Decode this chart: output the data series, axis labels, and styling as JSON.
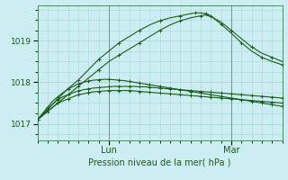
{
  "background_color": "#cceef2",
  "grid_color": "#a8d8dc",
  "line_color": "#1a5c1a",
  "title": "Pression niveau de la mer( hPa )",
  "xlabel_lun": "Lun",
  "xlabel_mar": "Mar",
  "ylim": [
    1016.6,
    1019.85
  ],
  "yticks": [
    1017,
    1018,
    1019
  ],
  "xlim": [
    0,
    48
  ],
  "x_lun": 14,
  "x_mar": 38,
  "series": [
    {
      "x": [
        0,
        1,
        2,
        3,
        4,
        5,
        6,
        7,
        8,
        9,
        10,
        11,
        12,
        13,
        14,
        15,
        16,
        17,
        18,
        19,
        20,
        21,
        22,
        23,
        24,
        25,
        26,
        27,
        28,
        29,
        30,
        31,
        32,
        33,
        34,
        35,
        36,
        37,
        38,
        39,
        40,
        41,
        42,
        43,
        44,
        45,
        46,
        47,
        48
      ],
      "y": [
        1017.1,
        1017.2,
        1017.3,
        1017.4,
        1017.5,
        1017.55,
        1017.6,
        1017.65,
        1017.7,
        1017.72,
        1017.75,
        1017.77,
        1017.78,
        1017.79,
        1017.8,
        1017.8,
        1017.8,
        1017.8,
        1017.8,
        1017.79,
        1017.78,
        1017.77,
        1017.76,
        1017.75,
        1017.74,
        1017.73,
        1017.72,
        1017.71,
        1017.7,
        1017.69,
        1017.68,
        1017.67,
        1017.66,
        1017.65,
        1017.64,
        1017.63,
        1017.62,
        1017.61,
        1017.6,
        1017.59,
        1017.58,
        1017.57,
        1017.56,
        1017.55,
        1017.54,
        1017.53,
        1017.52,
        1017.51,
        1017.5
      ]
    },
    {
      "x": [
        0,
        1,
        2,
        3,
        4,
        5,
        6,
        7,
        8,
        9,
        10,
        11,
        12,
        13,
        14,
        15,
        16,
        17,
        18,
        19,
        20,
        21,
        22,
        23,
        24,
        25,
        26,
        27,
        28,
        29,
        30,
        31,
        32,
        33,
        34,
        35,
        36,
        37,
        38,
        39,
        40,
        41,
        42,
        43,
        44,
        45,
        46,
        47,
        48
      ],
      "y": [
        1017.1,
        1017.2,
        1017.35,
        1017.48,
        1017.58,
        1017.65,
        1017.7,
        1017.75,
        1017.79,
        1017.82,
        1017.84,
        1017.86,
        1017.87,
        1017.88,
        1017.89,
        1017.9,
        1017.9,
        1017.9,
        1017.9,
        1017.9,
        1017.89,
        1017.89,
        1017.88,
        1017.87,
        1017.86,
        1017.85,
        1017.84,
        1017.83,
        1017.82,
        1017.81,
        1017.8,
        1017.79,
        1017.78,
        1017.77,
        1017.76,
        1017.75,
        1017.74,
        1017.73,
        1017.72,
        1017.71,
        1017.7,
        1017.69,
        1017.68,
        1017.67,
        1017.66,
        1017.65,
        1017.64,
        1017.63,
        1017.62
      ]
    },
    {
      "x": [
        0,
        1,
        2,
        3,
        4,
        5,
        6,
        7,
        8,
        9,
        10,
        11,
        12,
        13,
        14,
        15,
        16,
        17,
        18,
        19,
        20,
        21,
        22,
        23,
        24,
        25,
        26,
        27,
        28,
        29,
        30,
        31,
        32,
        33,
        34,
        35,
        36,
        37,
        38,
        39,
        40,
        41,
        42,
        43,
        44,
        45,
        46,
        47,
        48
      ],
      "y": [
        1017.1,
        1017.25,
        1017.4,
        1017.55,
        1017.65,
        1017.75,
        1017.83,
        1017.9,
        1017.96,
        1018.0,
        1018.03,
        1018.05,
        1018.06,
        1018.07,
        1018.07,
        1018.06,
        1018.05,
        1018.04,
        1018.02,
        1018.0,
        1017.98,
        1017.96,
        1017.94,
        1017.92,
        1017.9,
        1017.88,
        1017.86,
        1017.84,
        1017.82,
        1017.8,
        1017.78,
        1017.76,
        1017.74,
        1017.72,
        1017.7,
        1017.68,
        1017.66,
        1017.64,
        1017.62,
        1017.6,
        1017.58,
        1017.56,
        1017.54,
        1017.52,
        1017.5,
        1017.48,
        1017.46,
        1017.44,
        1017.42
      ]
    },
    {
      "x": [
        0,
        2,
        4,
        6,
        8,
        10,
        12,
        14,
        16,
        18,
        20,
        22,
        24,
        26,
        28,
        30,
        32,
        33,
        34,
        36,
        38,
        40,
        42,
        44,
        46,
        48
      ],
      "y": [
        1017.1,
        1017.3,
        1017.5,
        1017.7,
        1017.9,
        1018.1,
        1018.3,
        1018.5,
        1018.65,
        1018.8,
        1018.95,
        1019.1,
        1019.25,
        1019.38,
        1019.48,
        1019.55,
        1019.6,
        1019.62,
        1019.58,
        1019.45,
        1019.25,
        1019.05,
        1018.85,
        1018.7,
        1018.6,
        1018.5
      ]
    },
    {
      "x": [
        0,
        2,
        4,
        6,
        8,
        10,
        12,
        14,
        16,
        18,
        20,
        22,
        24,
        26,
        28,
        30,
        31,
        32,
        33,
        34,
        36,
        38,
        40,
        42,
        44,
        46,
        48
      ],
      "y": [
        1017.1,
        1017.35,
        1017.6,
        1017.85,
        1018.05,
        1018.3,
        1018.55,
        1018.75,
        1018.95,
        1019.1,
        1019.25,
        1019.38,
        1019.48,
        1019.55,
        1019.6,
        1019.65,
        1019.67,
        1019.67,
        1019.65,
        1019.6,
        1019.4,
        1019.18,
        1018.95,
        1018.75,
        1018.6,
        1018.5,
        1018.42
      ]
    }
  ]
}
